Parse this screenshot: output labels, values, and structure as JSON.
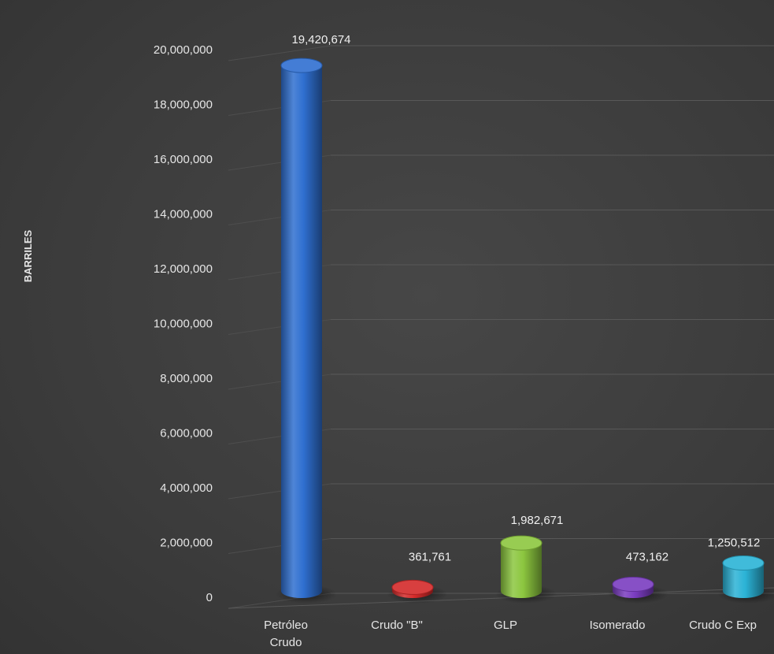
{
  "chart_data": {
    "type": "bar",
    "ylabel": "BARRILES",
    "ylim": [
      0,
      20000000
    ],
    "yticks": [
      0,
      2000000,
      4000000,
      6000000,
      8000000,
      10000000,
      12000000,
      14000000,
      16000000,
      18000000,
      20000000
    ],
    "ytick_labels": [
      "0",
      "2,000,000",
      "4,000,000",
      "6,000,000",
      "8,000,000",
      "10,000,000",
      "12,000,000",
      "14,000,000",
      "16,000,000",
      "18,000,000",
      "20,000,000"
    ],
    "categories": [
      [
        "Petróleo",
        "Crudo"
      ],
      [
        "Crudo \"B\""
      ],
      [
        "GLP"
      ],
      [
        "Isomerado"
      ],
      [
        "Crudo C Exp"
      ]
    ],
    "values": [
      19420674,
      361761,
      1982671,
      473162,
      1250512
    ],
    "value_labels": [
      "19,420,674",
      "361,761",
      "1,982,671",
      "473,162",
      "1,250,512"
    ],
    "colors": [
      "#2f6fd0",
      "#d42a2a",
      "#8cc63f",
      "#7a3cc0",
      "#2bb3d6"
    ],
    "grid": true,
    "legend": "none",
    "style": "3d-cylinder"
  }
}
